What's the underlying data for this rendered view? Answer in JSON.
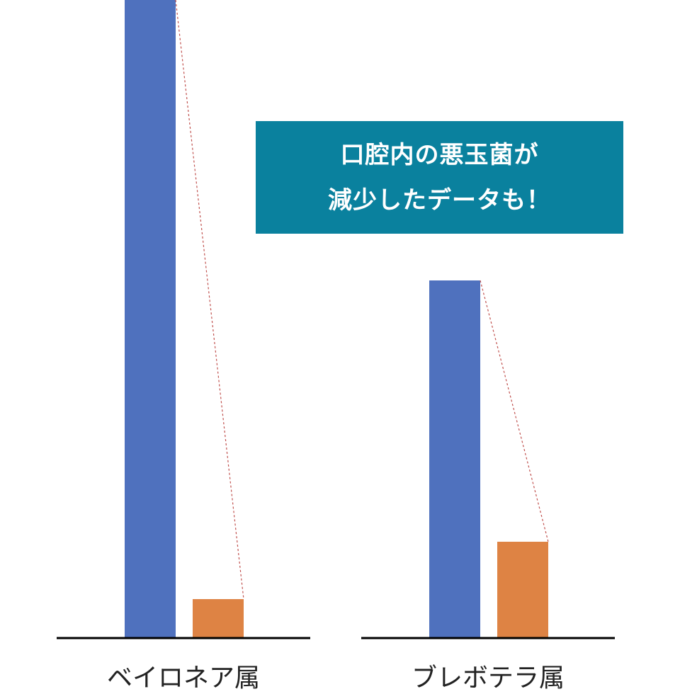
{
  "chart_data": {
    "type": "bar",
    "categories": [
      "ベイロネア属",
      "ブレボテラ属"
    ],
    "series": [
      {
        "values": [
          100,
          56
        ],
        "color": "#4f71be"
      },
      {
        "values": [
          6,
          15
        ],
        "color": "#de8344"
      }
    ],
    "ylim": [
      0,
      100
    ],
    "grid": false,
    "connector_color": "#c0504d",
    "annotation": {
      "lines": [
        "口腔内の悪玉菌が",
        "減少したデータも！"
      ],
      "background": "#0a819e"
    }
  }
}
